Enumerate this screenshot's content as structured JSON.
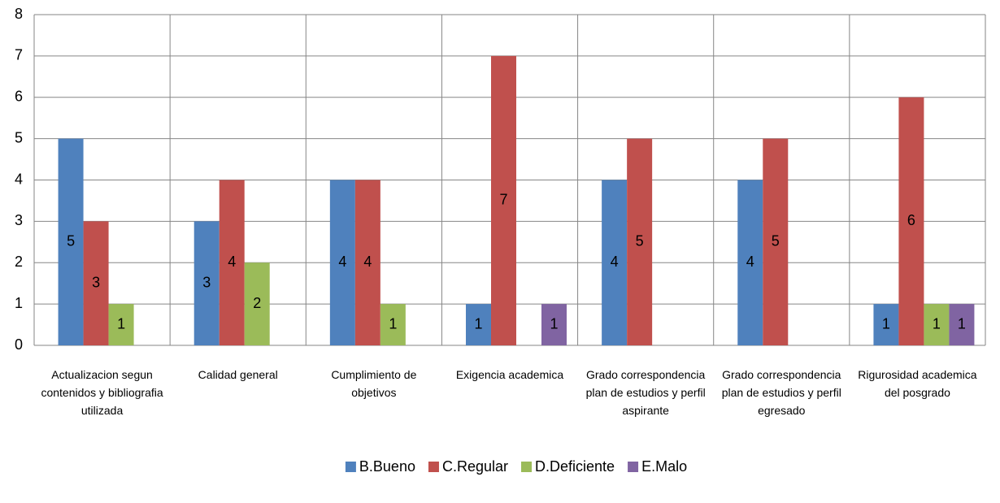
{
  "chart_data": {
    "type": "bar",
    "categories": [
      "Actualizacion segun contenidos y bibliografia utilizada",
      "Calidad general",
      "Cumplimiento de objetivos",
      "Exigencia academica",
      "Grado correspondencia plan de estudios y perfil aspirante",
      "Grado correspondencia plan de estudios y perfil egresado",
      "Rigurosidad academica del posgrado"
    ],
    "series": [
      {
        "name": "B.Bueno",
        "color": "#4f81bd",
        "values": [
          5,
          3,
          4,
          1,
          4,
          4,
          1
        ]
      },
      {
        "name": "C.Regular",
        "color": "#c0504d",
        "values": [
          3,
          4,
          4,
          7,
          5,
          5,
          6
        ]
      },
      {
        "name": "D.Deficiente",
        "color": "#9bbb59",
        "values": [
          1,
          2,
          1,
          null,
          null,
          null,
          1
        ]
      },
      {
        "name": "E.Malo",
        "color": "#8064a2",
        "values": [
          null,
          null,
          null,
          1,
          null,
          null,
          1
        ]
      }
    ],
    "ylim": [
      0,
      8
    ],
    "yticks": [
      0,
      1,
      2,
      3,
      4,
      5,
      6,
      7,
      8
    ],
    "grid": true,
    "legend": "bottom"
  }
}
